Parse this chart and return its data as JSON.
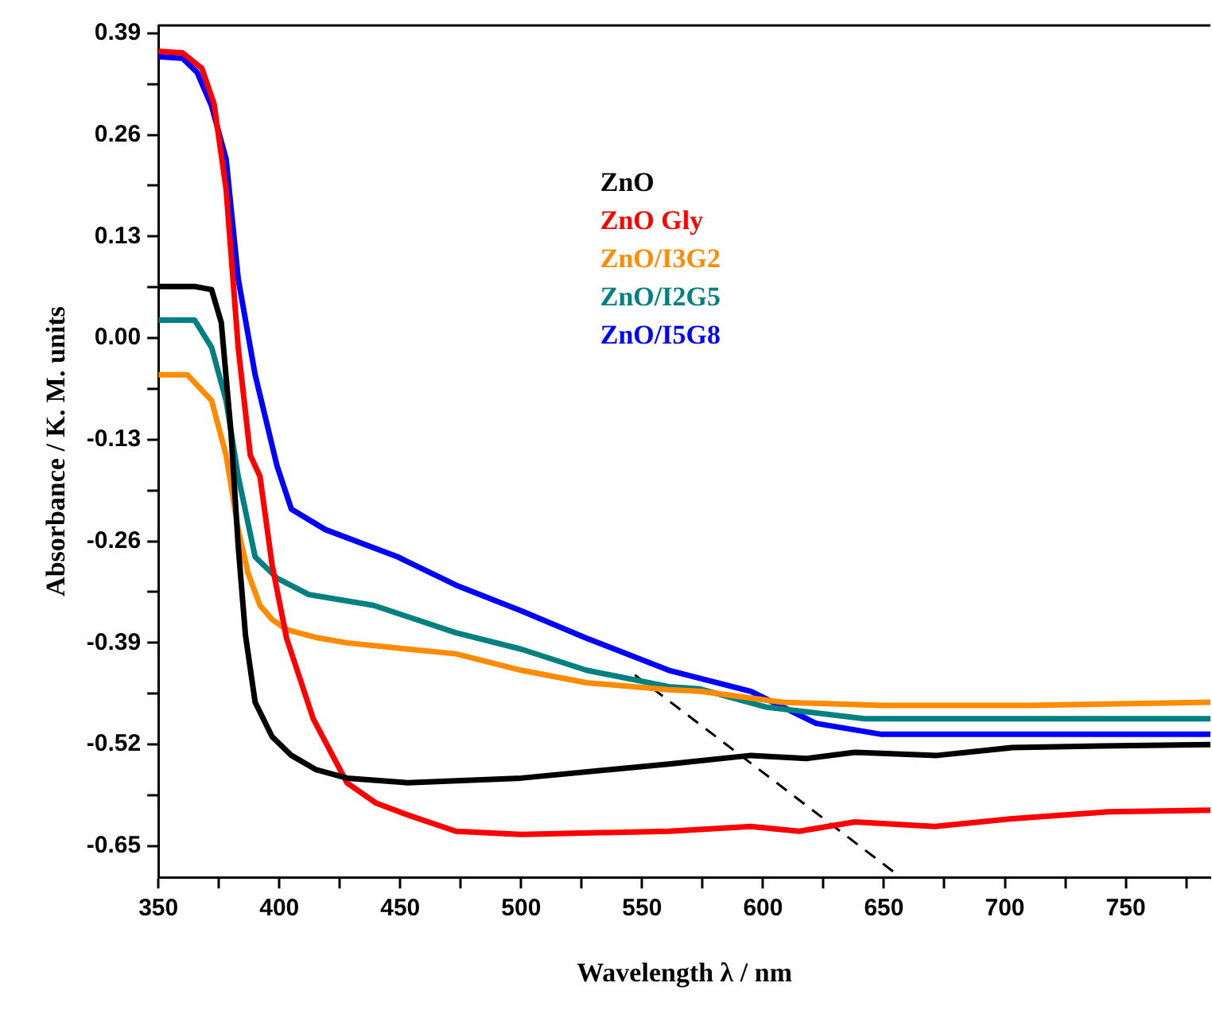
{
  "chart_data": {
    "type": "line",
    "xlabel": "Wavelength λ / nm",
    "ylabel": "Absorbance / K. M. units",
    "xlim": [
      350,
      785
    ],
    "ylim": [
      -0.69,
      0.4
    ],
    "xticks": [
      350,
      {
        "value": 375,
        "label": null
      },
      400,
      {
        "value": 425,
        "label": null
      },
      450,
      {
        "value": 475,
        "label": null
      },
      500,
      {
        "value": 525,
        "label": null
      },
      550,
      {
        "value": 575,
        "label": null
      },
      600,
      {
        "value": 625,
        "label": null
      },
      650,
      {
        "value": 675,
        "label": null
      },
      700,
      {
        "value": 725,
        "label": null
      },
      750,
      {
        "value": 775,
        "label": null
      }
    ],
    "yticks": [
      {
        "value": -0.65,
        "label": "-0.65"
      },
      {
        "value": -0.585,
        "label": null
      },
      {
        "value": -0.52,
        "label": "-0.52"
      },
      {
        "value": -0.455,
        "label": null
      },
      {
        "value": -0.39,
        "label": "-0.39"
      },
      {
        "value": -0.325,
        "label": null
      },
      {
        "value": -0.26,
        "label": "-0.26"
      },
      {
        "value": -0.195,
        "label": null
      },
      {
        "value": -0.13,
        "label": "-0.13"
      },
      {
        "value": -0.065,
        "label": null
      },
      {
        "value": 0,
        "label": "0.00"
      },
      {
        "value": 0.065,
        "label": null
      },
      {
        "value": 0.13,
        "label": "0.13"
      },
      {
        "value": 0.195,
        "label": null
      },
      {
        "value": 0.26,
        "label": "0.26"
      },
      {
        "value": 0.325,
        "label": null
      },
      {
        "value": 0.39,
        "label": "0.39"
      }
    ],
    "grid": false,
    "legend": "top right",
    "marker": "none",
    "series": [
      {
        "name": "ZnO",
        "color": "#000000",
        "x": [
          350,
          365,
          372,
          376,
          380,
          383,
          386,
          390,
          397,
          405,
          415,
          428,
          453,
          500,
          561,
          595,
          618,
          638,
          672,
          703,
          740,
          785
        ],
        "values": [
          0.066,
          0.066,
          0.062,
          0.02,
          -0.12,
          -0.266,
          -0.38,
          -0.466,
          -0.51,
          -0.534,
          -0.552,
          -0.563,
          -0.569,
          -0.563,
          -0.545,
          -0.534,
          -0.538,
          -0.53,
          -0.534,
          -0.524,
          -0.522,
          -0.52
        ]
      },
      {
        "name": "ZnO Gly",
        "color": "#ff0000",
        "x": [
          350,
          360,
          368,
          373,
          378,
          383,
          388,
          392,
          397,
          403,
          414,
          428,
          440,
          453,
          473,
          500,
          561,
          595,
          615,
          638,
          671,
          703,
          743,
          785
        ],
        "values": [
          0.367,
          0.365,
          0.345,
          0.3,
          0.19,
          -0.012,
          -0.15,
          -0.177,
          -0.29,
          -0.384,
          -0.487,
          -0.569,
          -0.595,
          -0.61,
          -0.631,
          -0.635,
          -0.631,
          -0.625,
          -0.631,
          -0.619,
          -0.625,
          -0.615,
          -0.606,
          -0.604
        ]
      },
      {
        "name": "ZnO/I3G2",
        "color": "#ff8c00",
        "x": [
          350,
          362,
          372,
          378,
          383,
          387,
          392,
          397,
          403,
          415,
          428,
          450,
          473,
          500,
          527,
          561,
          574,
          608,
          649,
          710,
          785
        ],
        "values": [
          -0.047,
          -0.047,
          -0.08,
          -0.15,
          -0.245,
          -0.3,
          -0.342,
          -0.36,
          -0.373,
          -0.383,
          -0.39,
          -0.397,
          -0.404,
          -0.425,
          -0.441,
          -0.45,
          -0.452,
          -0.466,
          -0.47,
          -0.47,
          -0.466
        ]
      },
      {
        "name": "ZnO/I2G5",
        "color": "#008080",
        "x": [
          350,
          365,
          372,
          378,
          383,
          390,
          399,
          412,
          439,
          473,
          500,
          527,
          561,
          574,
          601,
          642,
          669,
          720,
          785
        ],
        "values": [
          0.023,
          0.023,
          -0.012,
          -0.08,
          -0.177,
          -0.28,
          -0.307,
          -0.328,
          -0.342,
          -0.377,
          -0.398,
          -0.425,
          -0.446,
          -0.449,
          -0.472,
          -0.487,
          -0.487,
          -0.487,
          -0.487
        ]
      },
      {
        "name": "ZnO/I5G8",
        "color": "#0000ff",
        "x": [
          350,
          360,
          366,
          372,
          378,
          383,
          390,
          399,
          405,
          419,
          449,
          473,
          500,
          527,
          561,
          595,
          622,
          649,
          676,
          720,
          785
        ],
        "values": [
          0.36,
          0.358,
          0.34,
          0.297,
          0.229,
          0.076,
          -0.047,
          -0.163,
          -0.219,
          -0.245,
          -0.28,
          -0.316,
          -0.349,
          -0.384,
          -0.425,
          -0.452,
          -0.493,
          -0.507,
          -0.507,
          -0.507,
          -0.507
        ]
      },
      {
        "type": "line",
        "color": "#000000",
        "line_style": "dashed",
        "x": [
          547,
          657
        ],
        "values": [
          -0.431,
          -0.69
        ]
      }
    ]
  }
}
